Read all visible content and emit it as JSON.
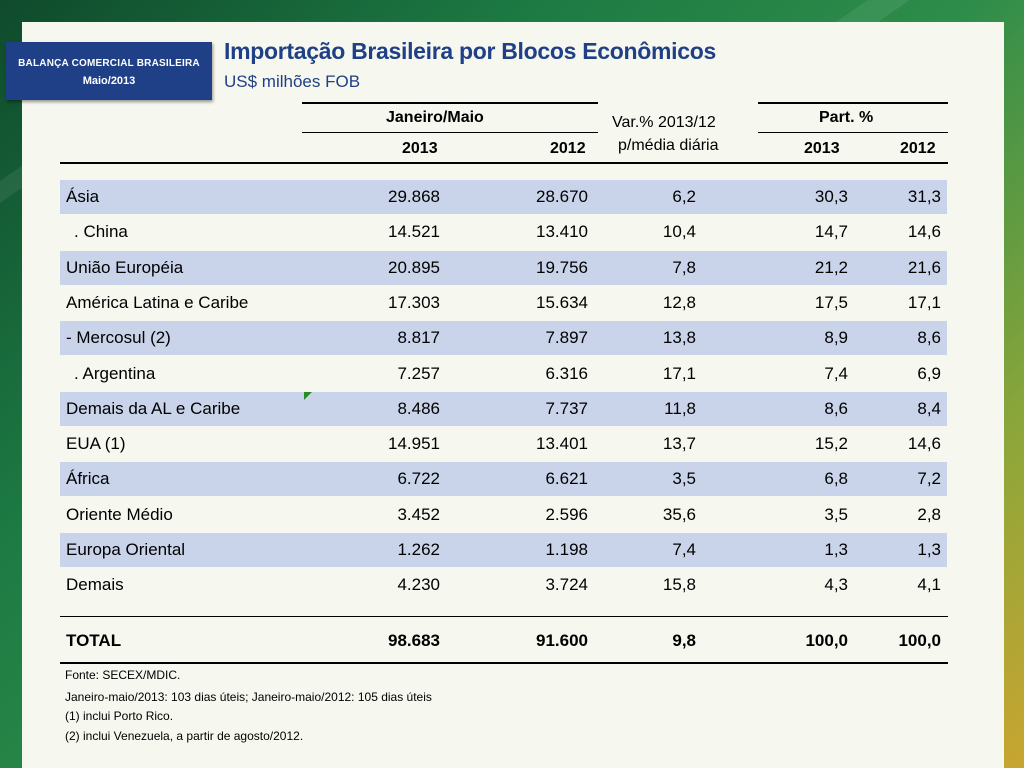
{
  "badge": {
    "line1": "BALANÇA COMERCIAL BRASILEIRA",
    "line2": "Maio/2013"
  },
  "title": "Importação Brasileira por Blocos Econômicos",
  "subtitle": "US$ milhões FOB",
  "headers": {
    "period": "Janeiro/Maio",
    "var_line1": "Var.% 2013/12",
    "var_line2": "p/média diária",
    "part": "Part. %",
    "y2013a": "2013",
    "y2012a": "2012",
    "y2013b": "2013",
    "y2012b": "2012"
  },
  "rows": [
    {
      "label": "Ásia",
      "v2013": "29.868",
      "v2012": "28.670",
      "var": "6,2",
      "p2013": "30,3",
      "p2012": "31,3"
    },
    {
      "label": ". China",
      "v2013": "14.521",
      "v2012": "13.410",
      "var": "10,4",
      "p2013": "14,7",
      "p2012": "14,6"
    },
    {
      "label": "União Européia",
      "v2013": "20.895",
      "v2012": "19.756",
      "var": "7,8",
      "p2013": "21,2",
      "p2012": "21,6"
    },
    {
      "label": "América Latina e Caribe",
      "v2013": "17.303",
      "v2012": "15.634",
      "var": "12,8",
      "p2013": "17,5",
      "p2012": "17,1"
    },
    {
      "label": "- Mercosul (2)",
      "v2013": "8.817",
      "v2012": "7.897",
      "var": "13,8",
      "p2013": "8,9",
      "p2012": "8,6"
    },
    {
      "label": ". Argentina",
      "v2013": "7.257",
      "v2012": "6.316",
      "var": "17,1",
      "p2013": "7,4",
      "p2012": "6,9"
    },
    {
      "label": "Demais da AL e Caribe",
      "v2013": "8.486",
      "v2012": "7.737",
      "var": "11,8",
      "p2013": "8,6",
      "p2012": "8,4"
    },
    {
      "label": "EUA (1)",
      "v2013": "14.951",
      "v2012": "13.401",
      "var": "13,7",
      "p2013": "15,2",
      "p2012": "14,6"
    },
    {
      "label": "África",
      "v2013": "6.722",
      "v2012": "6.621",
      "var": "3,5",
      "p2013": "6,8",
      "p2012": "7,2"
    },
    {
      "label": "Oriente Médio",
      "v2013": "3.452",
      "v2012": "2.596",
      "var": "35,6",
      "p2013": "3,5",
      "p2012": "2,8"
    },
    {
      "label": "Europa Oriental",
      "v2013": "1.262",
      "v2012": "1.198",
      "var": "7,4",
      "p2013": "1,3",
      "p2012": "1,3"
    },
    {
      "label": "Demais",
      "v2013": "4.230",
      "v2012": "3.724",
      "var": "15,8",
      "p2013": "4,3",
      "p2012": "4,1"
    }
  ],
  "total": {
    "label": "TOTAL",
    "v2013": "98.683",
    "v2012": "91.600",
    "var": "9,8",
    "p2013": "100,0",
    "p2012": "100,0"
  },
  "notes": {
    "source": "Fonte: SECEX/MDIC.",
    "days": "Janeiro-maio/2013: 103 dias úteis; Janeiro-maio/2012: 105 dias úteis",
    "note1": "(1) inclui Porto Rico.",
    "note2": "(2) inclui Venezuela, a partir de agosto/2012."
  },
  "colors": {
    "shade": "#c9d4ea",
    "title": "#1f3f86",
    "badge": "#1f3f86"
  }
}
